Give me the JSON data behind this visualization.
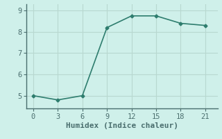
{
  "x": [
    0,
    3,
    6,
    9,
    12,
    15,
    18,
    21
  ],
  "y": [
    5.0,
    4.8,
    5.0,
    8.2,
    8.75,
    8.75,
    8.4,
    8.3
  ],
  "xlabel": "Humidex (Indice chaleur)",
  "line_color": "#2e7d6e",
  "marker": "D",
  "marker_size": 2.5,
  "bg_color": "#cff0ea",
  "grid_color": "#b8d8d0",
  "ylim": [
    4.4,
    9.3
  ],
  "xlim": [
    -0.8,
    22.5
  ],
  "yticks": [
    5,
    6,
    7,
    8,
    9
  ],
  "xticks": [
    0,
    3,
    6,
    9,
    12,
    15,
    18,
    21
  ],
  "tick_fontsize": 7.5,
  "label_fontsize": 8,
  "axis_color": "#4a6e6e",
  "line_width": 1.2
}
